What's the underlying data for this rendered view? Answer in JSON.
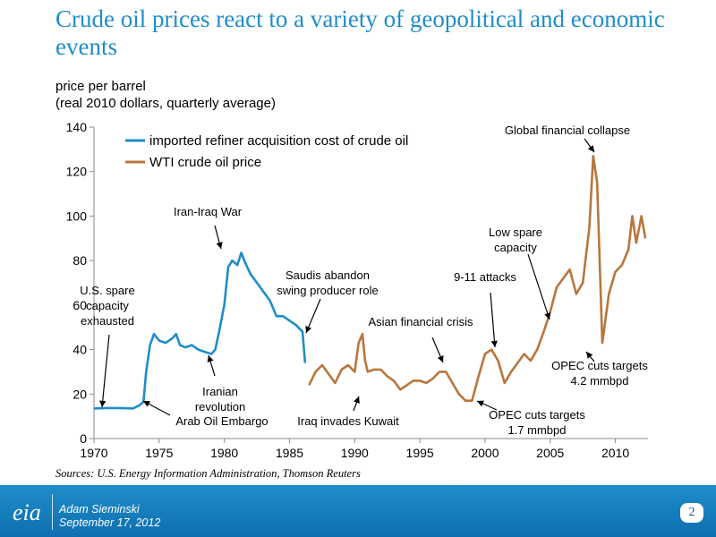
{
  "slide": {
    "title": "Crude oil prices react to a variety of geopolitical and economic events",
    "subtitle_line1": "price per barrel",
    "subtitle_line2": "(real 2010 dollars, quarterly average)",
    "source": "Sources: U.S. Energy Information Administration, Thomson Reuters",
    "author": "Adam Sieminski",
    "date": "September 17, 2012",
    "page_number": "2",
    "logo_text": "eia"
  },
  "colors": {
    "title": "#1f8dc9",
    "series_refiner": "#1f8dc9",
    "series_wti": "#b8763c",
    "footer": "#1479be"
  },
  "chart_data": {
    "type": "line",
    "xlim": [
      1970,
      2012.5
    ],
    "ylim": [
      0,
      140
    ],
    "x_ticks": [
      1970,
      1975,
      1980,
      1985,
      1990,
      1995,
      2000,
      2005,
      2010
    ],
    "y_ticks": [
      0,
      20,
      40,
      60,
      80,
      100,
      120,
      140
    ],
    "grid": false,
    "legend": "top-left",
    "series": [
      {
        "name": "imported refiner acquisition cost of crude oil",
        "x": [
          1970,
          1971,
          1972,
          1973,
          1973.5,
          1973.8,
          1974,
          1974.3,
          1974.6,
          1975,
          1975.5,
          1976,
          1976.3,
          1976.6,
          1977,
          1977.5,
          1978,
          1978.5,
          1979,
          1979.3,
          1979.6,
          1980,
          1980.3,
          1980.6,
          1981,
          1981.3,
          1981.6,
          1982,
          1982.5,
          1983,
          1983.5,
          1984,
          1984.5,
          1985,
          1985.5,
          1986,
          1986.2
        ],
        "y": [
          13.5,
          13.7,
          13.7,
          13.5,
          15,
          16.5,
          30,
          42,
          47,
          44,
          43,
          45,
          47,
          42,
          41,
          42,
          40,
          39,
          38,
          40,
          48,
          60,
          77,
          80,
          78,
          83.5,
          79,
          74,
          70,
          66,
          62,
          55,
          55,
          53,
          51,
          48,
          34
        ]
      },
      {
        "name": "WTI crude oil price",
        "x": [
          1986.5,
          1987,
          1987.5,
          1988,
          1988.5,
          1989,
          1989.5,
          1990,
          1990.3,
          1990.6,
          1990.8,
          1991,
          1991.5,
          1992,
          1992.5,
          1993,
          1993.5,
          1994,
          1994.5,
          1995,
          1995.5,
          1996,
          1996.5,
          1997,
          1997.5,
          1998,
          1998.5,
          1999,
          1999.5,
          2000,
          2000.5,
          2001,
          2001.5,
          2002,
          2002.5,
          2003,
          2003.5,
          2004,
          2004.5,
          2005,
          2005.5,
          2006,
          2006.5,
          2007,
          2007.5,
          2008,
          2008.3,
          2008.6,
          2008.9,
          2009,
          2009.5,
          2010,
          2010.5,
          2011,
          2011.3,
          2011.6,
          2012,
          2012.3
        ],
        "y": [
          24,
          30,
          33,
          29,
          25,
          31,
          33,
          30,
          43,
          47,
          35,
          30,
          31,
          31,
          28,
          26,
          22,
          24,
          26,
          26,
          25,
          27,
          30,
          30,
          25,
          20,
          17,
          17,
          28,
          38,
          40,
          35,
          25,
          30,
          34,
          38,
          35,
          40,
          48,
          57,
          68,
          72,
          76,
          65,
          70,
          95,
          127,
          115,
          60,
          43,
          65,
          75,
          78,
          85,
          100,
          88,
          100,
          90
        ]
      }
    ],
    "annotations": [
      {
        "text_lines": [
          "U.S. spare",
          "capacity",
          "exhausted"
        ]
      },
      {
        "text_lines": [
          "Arab Oil Embargo"
        ]
      },
      {
        "text_lines": [
          "Iran-Iraq War"
        ]
      },
      {
        "text_lines": [
          "Iranian",
          "revolution"
        ]
      },
      {
        "text_lines": [
          "Saudis abandon",
          "swing producer role"
        ]
      },
      {
        "text_lines": [
          "Iraq invades Kuwait"
        ]
      },
      {
        "text_lines": [
          "Asian financial crisis"
        ]
      },
      {
        "text_lines": [
          "9-11 attacks"
        ]
      },
      {
        "text_lines": [
          "OPEC cuts targets",
          "1.7 mmbpd"
        ]
      },
      {
        "text_lines": [
          "Low spare",
          "capacity"
        ]
      },
      {
        "text_lines": [
          "Global financial collapse"
        ]
      },
      {
        "text_lines": [
          "OPEC cuts targets",
          "4.2 mmbpd"
        ]
      }
    ]
  }
}
